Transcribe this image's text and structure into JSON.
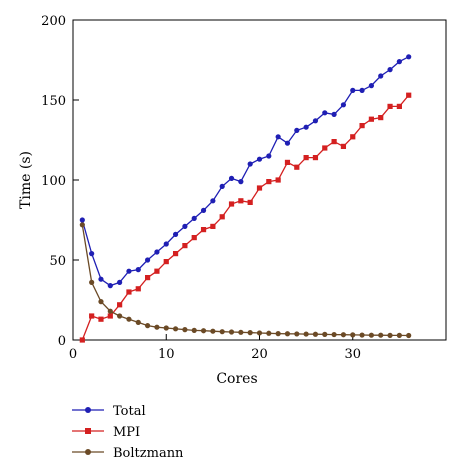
{
  "chart_data": {
    "type": "line",
    "title": "",
    "xlabel": "Cores",
    "ylabel": "Time (s)",
    "xlim": [
      0,
      40
    ],
    "ylim": [
      0,
      200
    ],
    "xticks": [
      0,
      10,
      20,
      30
    ],
    "yticks": [
      0,
      50,
      100,
      150,
      200
    ],
    "grid": false,
    "legend_position": "bottom-left, below plot",
    "x": [
      1,
      2,
      3,
      4,
      5,
      6,
      7,
      8,
      9,
      10,
      11,
      12,
      13,
      14,
      15,
      16,
      17,
      18,
      19,
      20,
      21,
      22,
      23,
      24,
      25,
      26,
      27,
      28,
      29,
      30,
      31,
      32,
      33,
      34,
      35,
      36
    ],
    "series": [
      {
        "name": "Total",
        "color": "#1f1fb4",
        "marker": "circle",
        "values": [
          75,
          54,
          38,
          34,
          36,
          43,
          44,
          50,
          55,
          60,
          66,
          71,
          76,
          81,
          87,
          96,
          101,
          99,
          110,
          113,
          115,
          127,
          123,
          131,
          133,
          137,
          142,
          141,
          147,
          156,
          156,
          159,
          165,
          169,
          174,
          177
        ]
      },
      {
        "name": "MPI",
        "color": "#d42020",
        "marker": "square",
        "values": [
          0,
          15,
          13,
          15,
          22,
          30,
          32,
          39,
          43,
          49,
          54,
          59,
          64,
          69,
          71,
          77,
          85,
          87,
          86,
          95,
          99,
          100,
          111,
          108,
          114,
          114,
          120,
          124,
          121,
          127,
          134,
          138,
          139,
          146,
          146,
          153
        ]
      },
      {
        "name": "Boltzmann",
        "color": "#6b4a26",
        "marker": "circle",
        "values": [
          72,
          36,
          24,
          18,
          15,
          13,
          11,
          9,
          8,
          7.5,
          7,
          6.5,
          6,
          5.8,
          5.5,
          5.2,
          5,
          4.8,
          4.6,
          4.4,
          4.2,
          4,
          3.9,
          3.8,
          3.7,
          3.6,
          3.5,
          3.4,
          3.3,
          3.2,
          3.1,
          3,
          3,
          2.9,
          2.9,
          2.8
        ]
      }
    ]
  }
}
